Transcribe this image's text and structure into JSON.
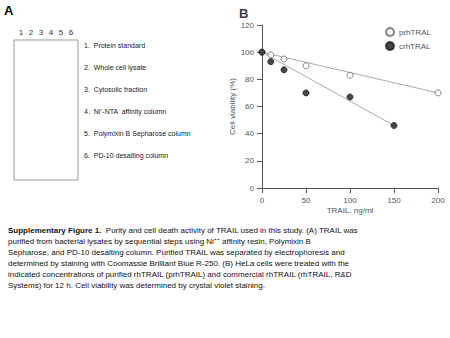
{
  "chart_data": [
    {
      "type": "gel",
      "title": "A",
      "categories": [
        "1",
        "2",
        "3",
        "4",
        "5",
        "6"
      ],
      "annotations": [
        "1.  Protein standard",
        "2.  Whole cell lysate",
        "3.  Cytosolic fraction",
        "4.  Ni⁺-NTA  affinity column",
        "5.  Polymixin B Sepharose column",
        "6.  PD-10 desalting column"
      ]
    },
    {
      "type": "scatter",
      "title": "B",
      "xlabel": "TRAIL, ng/ml",
      "ylabel": "Cell viability (%)",
      "xlim": [
        0,
        200
      ],
      "xticks": [
        0,
        50,
        100,
        150,
        200
      ],
      "ylim": [
        0,
        120
      ],
      "yticks": [
        0,
        20,
        40,
        60,
        80,
        100,
        120
      ],
      "grid": false,
      "legend": "upper right",
      "series": [
        {
          "name": "prhTRAL",
          "type": "scatter",
          "marker": "hollow",
          "color": "#666666",
          "x": [
            0,
            10,
            25,
            50,
            100,
            200
          ],
          "values": [
            100,
            98,
            95,
            90,
            83,
            70
          ]
        },
        {
          "name": "crhTRAL",
          "type": "scatter",
          "marker": "circle",
          "color": "#1a1a1a",
          "x": [
            0,
            10,
            25,
            50,
            100,
            150
          ],
          "values": [
            100,
            93,
            87,
            70,
            67,
            46
          ]
        },
        {
          "type": "line",
          "color": "#aaaaaa",
          "x": [
            0,
            200
          ],
          "values": [
            100,
            70
          ]
        },
        {
          "type": "line",
          "color": "#aaaaaa",
          "x": [
            0,
            150
          ],
          "values": [
            100,
            46
          ]
        }
      ],
      "annotations": [
        "Supplementary Figure 1.",
        "  Purity and cell death activity of TRAIL used in this study. (A) TRAIL was purified from bacterial lysates by sequential steps using Ni⁺⁺ affinity resin, Polymixin B Sepharose, and PD-10 desalting column. Purified TRAIL was separated by electrophoresis and determined by staining with Coomassie Brilliant Blue R-250. (B) HeLa cells were treated with the indicated concentrations of purified rhTRAIL (prhTRAIL) and commercial rhTRAIL (rhTRAIL, R&D Systems) for 12 h. Cell viability was determined by crystal violet staining."
      ]
    }
  ]
}
